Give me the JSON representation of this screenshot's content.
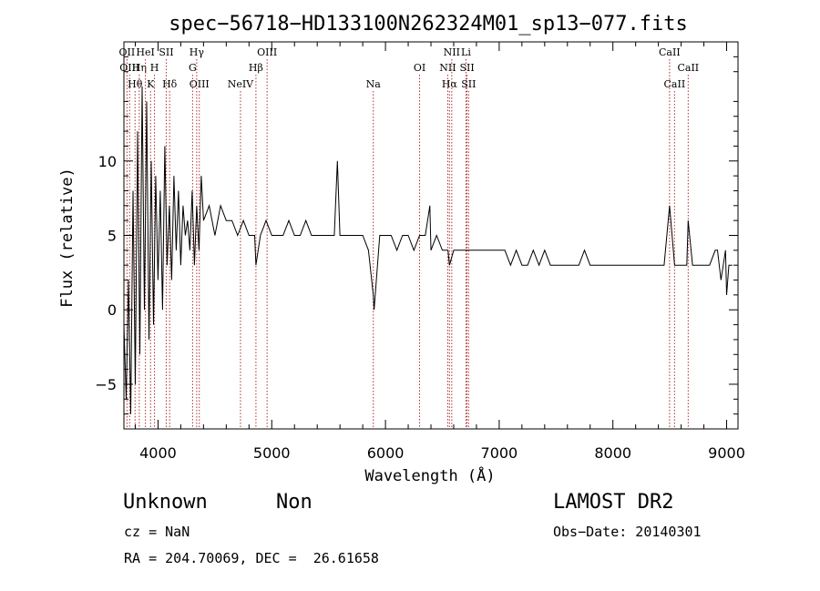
{
  "chart_data": {
    "type": "line",
    "title": "spec−56718−HD133100N262324M01_sp13−077.fits",
    "xlabel": "Wavelength (Å)",
    "ylabel": "Flux (relative)",
    "xlim": [
      3700,
      9100
    ],
    "ylim": [
      -8,
      18
    ],
    "xticks": [
      {
        "value": 4000,
        "label": "4000"
      },
      {
        "value": 5000,
        "label": "5000"
      },
      {
        "value": 6000,
        "label": "6000"
      },
      {
        "value": 7000,
        "label": "7000"
      },
      {
        "value": 8000,
        "label": "8000"
      },
      {
        "value": 9000,
        "label": "9000"
      }
    ],
    "yticks": [
      {
        "value": -5,
        "label": "−5"
      },
      {
        "value": 0,
        "label": "0"
      },
      {
        "value": 5,
        "label": "5"
      },
      {
        "value": 10,
        "label": "10"
      }
    ],
    "grid": false,
    "line_color": "#000000",
    "marker_color": "#b03030",
    "spectrum": {
      "name": "spectrum",
      "x": [
        3700,
        3720,
        3740,
        3760,
        3780,
        3800,
        3820,
        3840,
        3860,
        3880,
        3900,
        3920,
        3940,
        3960,
        3980,
        4000,
        4020,
        4040,
        4060,
        4080,
        4100,
        4120,
        4140,
        4160,
        4180,
        4200,
        4220,
        4240,
        4260,
        4280,
        4300,
        4320,
        4340,
        4360,
        4380,
        4400,
        4450,
        4500,
        4550,
        4600,
        4650,
        4700,
        4750,
        4800,
        4850,
        4861,
        4900,
        4950,
        5000,
        5050,
        5100,
        5150,
        5200,
        5250,
        5300,
        5350,
        5400,
        5450,
        5500,
        5550,
        5577,
        5600,
        5650,
        5700,
        5750,
        5800,
        5850,
        5893,
        5900,
        5950,
        6000,
        6050,
        6100,
        6150,
        6200,
        6250,
        6300,
        6350,
        6390,
        6400,
        6450,
        6500,
        6550,
        6563,
        6600,
        6650,
        6700,
        6750,
        6800,
        6850,
        6900,
        6950,
        7000,
        7050,
        7100,
        7150,
        7200,
        7250,
        7300,
        7350,
        7400,
        7450,
        7500,
        7550,
        7600,
        7650,
        7700,
        7750,
        7800,
        7850,
        7900,
        7950,
        8000,
        8050,
        8100,
        8150,
        8200,
        8250,
        8300,
        8350,
        8400,
        8450,
        8498,
        8542,
        8600,
        8650,
        8662,
        8700,
        8750,
        8800,
        8850,
        8900,
        8920,
        8950,
        8970,
        8990,
        9000,
        9020,
        9050
      ],
      "y": [
        -1,
        -6,
        2,
        -7,
        8,
        -5,
        12,
        -3,
        15,
        0,
        14,
        -2,
        10,
        -1,
        9,
        2,
        8,
        0,
        11,
        3,
        7,
        2,
        9,
        4,
        8,
        3,
        7,
        5,
        6,
        4,
        8,
        3,
        7,
        4,
        9,
        6,
        7,
        5,
        7,
        6,
        6,
        5,
        6,
        5,
        5,
        3,
        5,
        6,
        5,
        5,
        5,
        6,
        5,
        5,
        6,
        5,
        5,
        5,
        5,
        5,
        10,
        5,
        5,
        5,
        5,
        5,
        4,
        1,
        0,
        5,
        5,
        5,
        4,
        5,
        5,
        4,
        5,
        5,
        7,
        4,
        5,
        4,
        4,
        3,
        4,
        4,
        4,
        4,
        4,
        4,
        4,
        4,
        4,
        4,
        3,
        4,
        3,
        3,
        4,
        3,
        4,
        3,
        3,
        3,
        3,
        3,
        3,
        4,
        3,
        3,
        3,
        3,
        3,
        3,
        3,
        3,
        3,
        3,
        3,
        3,
        3,
        3,
        7,
        3,
        3,
        3,
        6,
        3,
        3,
        3,
        3,
        4,
        4,
        2,
        3,
        4,
        1,
        3,
        3
      ]
    },
    "lines": [
      {
        "label": "OII",
        "x": 3727,
        "row": 0
      },
      {
        "label": "OIII",
        "x": 3750,
        "row": 1
      },
      {
        "label": "Hθ",
        "x": 3798,
        "row": 2
      },
      {
        "label": "Hη",
        "x": 3835,
        "row": 1
      },
      {
        "label": "HeI",
        "x": 3889,
        "row": 0
      },
      {
        "label": "K",
        "x": 3934,
        "row": 2
      },
      {
        "label": "H",
        "x": 3969,
        "row": 1
      },
      {
        "label": "SII",
        "x": 4072,
        "row": 0
      },
      {
        "label": "Hδ",
        "x": 4102,
        "row": 2
      },
      {
        "label": "Hγ",
        "x": 4340,
        "row": 0
      },
      {
        "label": "G",
        "x": 4304,
        "row": 1
      },
      {
        "label": "OIII",
        "x": 4363,
        "row": 2
      },
      {
        "label": "OIII",
        "x": 4959,
        "row": 0
      },
      {
        "label": "Hβ",
        "x": 4861,
        "row": 1
      },
      {
        "label": "NeIV",
        "x": 4725,
        "row": 2
      },
      {
        "label": "Na",
        "x": 5893,
        "row": 2
      },
      {
        "label": "OI",
        "x": 6300,
        "row": 1
      },
      {
        "label": "NII",
        "x": 6583,
        "row": 0
      },
      {
        "label": "NII",
        "x": 6548,
        "row": 1
      },
      {
        "label": "Hα",
        "x": 6563,
        "row": 2
      },
      {
        "label": "Li",
        "x": 6708,
        "row": 0
      },
      {
        "label": "SII",
        "x": 6717,
        "row": 1
      },
      {
        "label": "SII",
        "x": 6731,
        "row": 2
      },
      {
        "label": "CaII",
        "x": 8498,
        "row": 0
      },
      {
        "label": "CaII",
        "x": 8542,
        "row": 2
      },
      {
        "label": "CaII",
        "x": 8662,
        "row": 1
      }
    ]
  },
  "info": {
    "class": "Unknown",
    "subclass": "Non",
    "survey": "LAMOST DR2",
    "cz": "cz = NaN",
    "obs_date": "Obs−Date: 20140301",
    "coords": "RA = 204.70069, DEC =  26.61658"
  }
}
